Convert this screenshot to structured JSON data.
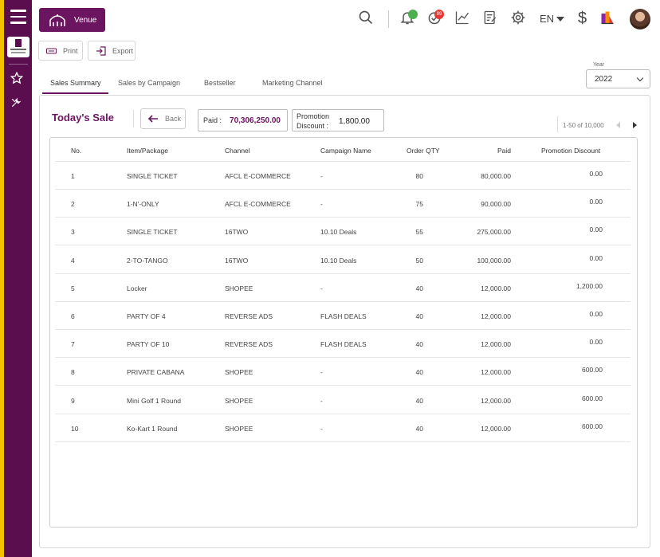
{
  "header": {
    "venue_label": "Venue",
    "notification_badge": "",
    "alert_badge": "99",
    "language": "EN",
    "currency_symbol": "$"
  },
  "actions": {
    "print_label": "Print",
    "export_label": "Export"
  },
  "tabs": [
    {
      "label": "Sales Summary",
      "active": true
    },
    {
      "label": "Sales by Campaign",
      "active": false
    },
    {
      "label": "Bestseller",
      "active": false
    },
    {
      "label": "Marketing Channel",
      "active": false
    }
  ],
  "year": {
    "label": "Year",
    "value": "2022"
  },
  "summary": {
    "title": "Today's Sale",
    "back_label": "Back",
    "paid_label": "Paid :",
    "paid_value": "70,306,250.00",
    "promo_label_line1": "Promotion",
    "promo_label_line2": "Discount :",
    "promo_value": "1,800.00"
  },
  "pagination": {
    "range": "1-50 of 10,000"
  },
  "table": {
    "columns": [
      "No.",
      "Item/Package",
      "Channel",
      "Campaign Name",
      "Order QTY",
      "Paid",
      "Promotion Discount"
    ],
    "rows": [
      [
        "1",
        "SINGLE TICKET",
        "AFCL E-COMMERCE",
        "-",
        "80",
        "80,000.00",
        "0.00"
      ],
      [
        "2",
        "1-N'-ONLY",
        "AFCL E-COMMERCE",
        "-",
        "75",
        "90,000.00",
        "0.00"
      ],
      [
        "3",
        "SINGLE TICKET",
        "16TWO",
        "10.10 Deals",
        "55",
        "275,000.00",
        "0.00"
      ],
      [
        "4",
        "2-TO-TANGO",
        "16TWO",
        "10.10 Deals",
        "50",
        "100,000.00",
        "0.00"
      ],
      [
        "5",
        "Locker",
        "SHOPEE",
        "-",
        "40",
        "12,000.00",
        "1,200.00"
      ],
      [
        "6",
        "PARTY OF 4",
        "REVERSE ADS",
        "FLASH DEALS",
        "40",
        "12,000.00",
        "0.00"
      ],
      [
        "7",
        "PARTY OF 10",
        "REVERSE ADS",
        "FLASH DEALS",
        "40",
        "12,000.00",
        "0.00"
      ],
      [
        "8",
        "PRIVATE CABANA",
        "SHOPEE",
        "-",
        "40",
        "12,000.00",
        "600.00"
      ],
      [
        "9",
        "Mini Golf 1 Round",
        "SHOPEE",
        "-",
        "40",
        "12,000.00",
        "600.00"
      ],
      [
        "10",
        "Ko-Kart 1 Round",
        "SHOPEE",
        "-",
        "40",
        "12,000.00",
        "600.00"
      ]
    ]
  },
  "colors": {
    "brand": "#6b1460",
    "sidebar": "#5b0e4e",
    "accent_stripe": "#f2c200",
    "badge_green": "#4caf50",
    "badge_red": "#e53935"
  }
}
